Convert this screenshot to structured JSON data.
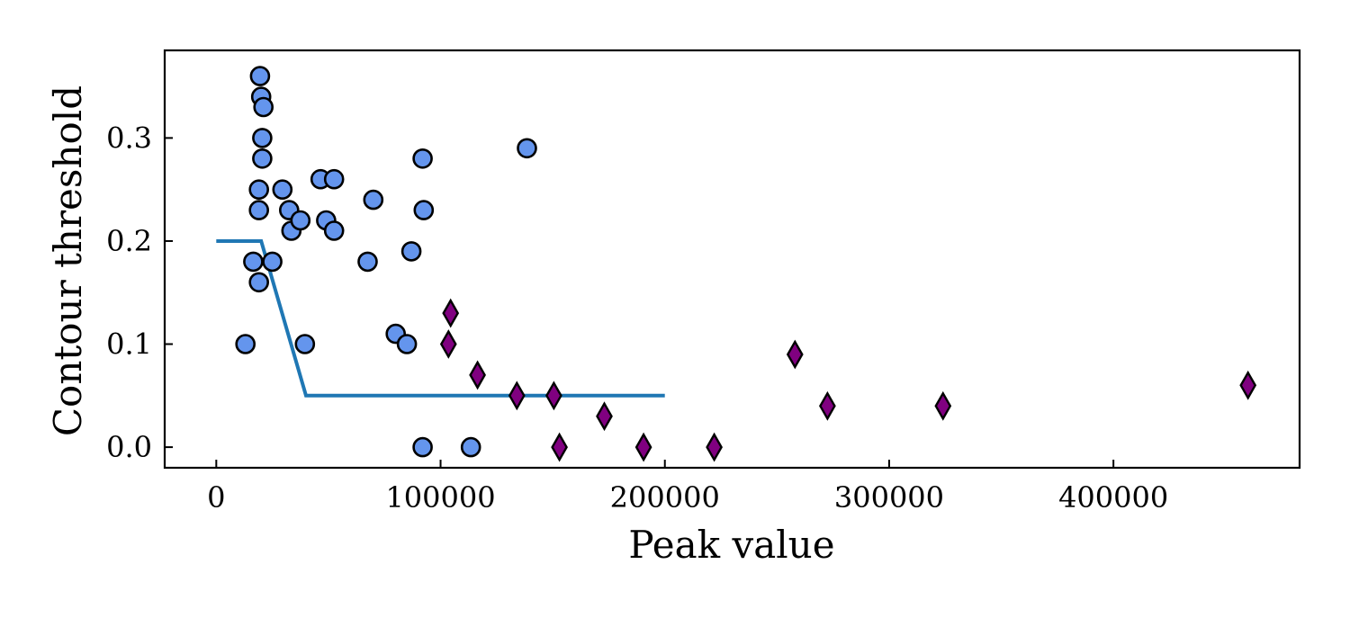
{
  "chart_data": {
    "type": "scatter",
    "title": "",
    "xlabel": "Peak value",
    "ylabel": "Contour threshold",
    "xlim": [
      -23000,
      483000
    ],
    "ylim": [
      -0.02,
      0.385
    ],
    "x_ticks": [
      0,
      100000,
      200000,
      300000,
      400000
    ],
    "x_tick_labels": [
      "0",
      "100000",
      "200000",
      "300000",
      "400000"
    ],
    "y_ticks": [
      0.0,
      0.1,
      0.2,
      0.3
    ],
    "y_tick_labels": [
      "0.0",
      "0.1",
      "0.2",
      "0.3"
    ],
    "grid": false,
    "tick_direction": "in",
    "series": [
      {
        "marker": "circle",
        "color": "#6495ED",
        "edge_color": "#000000",
        "points": [
          [
            13000,
            0.1
          ],
          [
            16500,
            0.18
          ],
          [
            19000,
            0.16
          ],
          [
            19000,
            0.23
          ],
          [
            19000,
            0.25
          ],
          [
            19500,
            0.36
          ],
          [
            20000,
            0.34
          ],
          [
            20500,
            0.28
          ],
          [
            20500,
            0.3
          ],
          [
            21000,
            0.33
          ],
          [
            25000,
            0.18
          ],
          [
            29500,
            0.25
          ],
          [
            32500,
            0.23
          ],
          [
            33500,
            0.21
          ],
          [
            37500,
            0.22
          ],
          [
            39500,
            0.1
          ],
          [
            46500,
            0.26
          ],
          [
            49000,
            0.22
          ],
          [
            52500,
            0.21
          ],
          [
            52500,
            0.26
          ],
          [
            67500,
            0.18
          ],
          [
            70000,
            0.24
          ],
          [
            80000,
            0.11
          ],
          [
            85000,
            0.1
          ],
          [
            87000,
            0.19
          ],
          [
            92000,
            0.0
          ],
          [
            92000,
            0.28
          ],
          [
            92500,
            0.23
          ],
          [
            113500,
            0.0
          ],
          [
            138500,
            0.29
          ]
        ]
      },
      {
        "marker": "thin_diamond",
        "color": "#800080",
        "edge_color": "#000000",
        "points": [
          [
            103500,
            0.1
          ],
          [
            104500,
            0.13
          ],
          [
            116500,
            0.07
          ],
          [
            134000,
            0.05
          ],
          [
            150500,
            0.05
          ],
          [
            153000,
            0.0
          ],
          [
            173000,
            0.03
          ],
          [
            190500,
            0.0
          ],
          [
            222000,
            0.0
          ],
          [
            258000,
            0.09
          ],
          [
            272500,
            0.04
          ],
          [
            324000,
            0.04
          ],
          [
            460000,
            0.06
          ]
        ]
      },
      {
        "type": "line",
        "color": "#1F77B4",
        "points": [
          [
            0,
            0.2
          ],
          [
            20000,
            0.2
          ],
          [
            40000,
            0.05
          ],
          [
            200000,
            0.05
          ]
        ]
      }
    ]
  }
}
